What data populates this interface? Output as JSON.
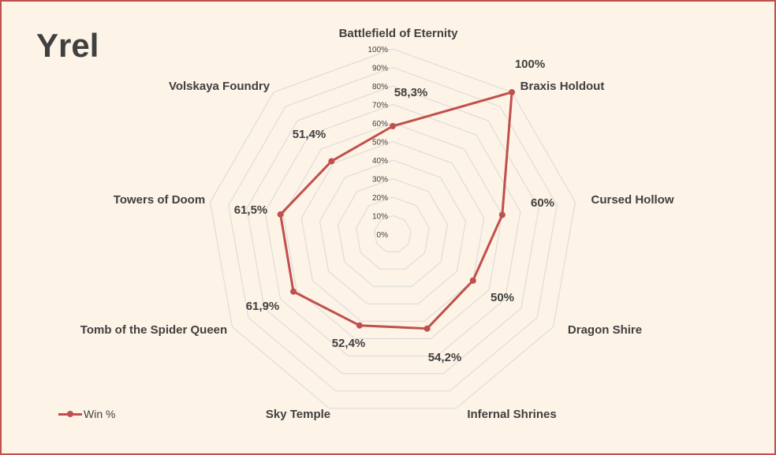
{
  "chart_data": {
    "type": "radar",
    "title": "Yrel",
    "categories": [
      "Battlefield of Eternity",
      "Braxis Holdout",
      "Cursed Hollow",
      "Dragon Shire",
      "Infernal Shrines",
      "Sky Temple",
      "Tomb of the Spider Queen",
      "Towers of Doom",
      "Volskaya Foundry"
    ],
    "series": [
      {
        "name": "Win %",
        "values": [
          58.3,
          100,
          60,
          50,
          54.2,
          52.4,
          61.9,
          61.5,
          51.4
        ],
        "labels": [
          "58,3%",
          "100%",
          "60%",
          "50%",
          "54,2%",
          "52,4%",
          "61,9%",
          "61,5%",
          "51,4%"
        ]
      }
    ],
    "ticks": [
      0,
      10,
      20,
      30,
      40,
      50,
      60,
      70,
      80,
      90,
      100
    ],
    "tick_labels": [
      "0%",
      "10%",
      "20%",
      "30%",
      "40%",
      "50%",
      "60%",
      "70%",
      "80%",
      "90%",
      "100%"
    ],
    "rlim": [
      0,
      100
    ],
    "legend_position": "bottom-left"
  },
  "colors": {
    "series": "#c0504d",
    "grid": "#d9d9d9",
    "text": "#404040",
    "background": "#fdf3e6"
  }
}
